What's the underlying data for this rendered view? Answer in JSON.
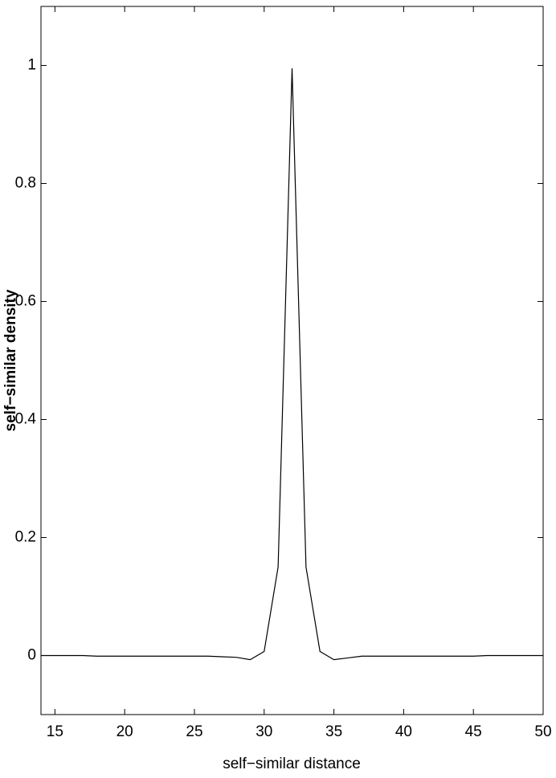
{
  "chart_data": {
    "type": "line",
    "xlabel": "self−similar distance",
    "ylabel": "self−similar density",
    "x": [
      14,
      15,
      16,
      17,
      18,
      19,
      20,
      21,
      22,
      23,
      24,
      25,
      26,
      27,
      28,
      29,
      30,
      31,
      32,
      33,
      34,
      35,
      36,
      37,
      38,
      39,
      40,
      41,
      42,
      43,
      44,
      45,
      46,
      47,
      48,
      49,
      50
    ],
    "series": [
      {
        "color": "#000000",
        "values": [
          0,
          0,
          0,
          0,
          -0.001,
          -0.001,
          -0.001,
          -0.001,
          -0.001,
          -0.001,
          -0.001,
          -0.001,
          -0.001,
          -0.002,
          -0.003,
          -0.007,
          0.007,
          0.15,
          0.995,
          0.15,
          0.007,
          -0.007,
          -0.004,
          -0.001,
          -0.001,
          -0.001,
          -0.001,
          -0.001,
          -0.001,
          -0.001,
          -0.001,
          -0.001,
          0,
          0,
          0,
          0,
          0
        ]
      }
    ],
    "xlim": [
      14,
      50
    ],
    "xticks": [
      15,
      20,
      25,
      30,
      35,
      40,
      45,
      50
    ],
    "ylim": [
      -0.1,
      1.1
    ],
    "yticks": [
      0,
      0.2,
      0.4,
      0.6,
      0.8,
      1
    ],
    "grid": false
  }
}
